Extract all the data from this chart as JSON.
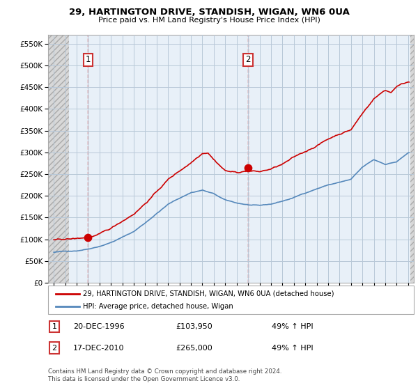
{
  "title_line1": "29, HARTINGTON DRIVE, STANDISH, WIGAN, WN6 0UA",
  "title_line2": "Price paid vs. HM Land Registry's House Price Index (HPI)",
  "ytick_values": [
    0,
    50000,
    100000,
    150000,
    200000,
    250000,
    300000,
    350000,
    400000,
    450000,
    500000,
    550000
  ],
  "sale1_x": 1997.0,
  "sale1_price": 103950,
  "sale1_label": "1",
  "sale2_x": 2011.0,
  "sale2_price": 265000,
  "sale2_label": "2",
  "note1_index": "1",
  "note1_date": "20-DEC-1996",
  "note1_price": "£103,950",
  "note1_hpi": "49% ↑ HPI",
  "note2_index": "2",
  "note2_date": "17-DEC-2010",
  "note2_price": "£265,000",
  "note2_hpi": "49% ↑ HPI",
  "legend_label1": "29, HARTINGTON DRIVE, STANDISH, WIGAN, WN6 0UA (detached house)",
  "legend_label2": "HPI: Average price, detached house, Wigan",
  "footer": "Contains HM Land Registry data © Crown copyright and database right 2024.\nThis data is licensed under the Open Government Licence v3.0.",
  "line1_color": "#cc0000",
  "line2_color": "#5588bb",
  "plot_bg_color": "#e8f0f8",
  "hatch_color": "#d0d0d0",
  "grid_color": "#b8c8d8",
  "xmin": 1993.5,
  "xmax": 2025.5,
  "ymin": 0,
  "ymax": 570000
}
